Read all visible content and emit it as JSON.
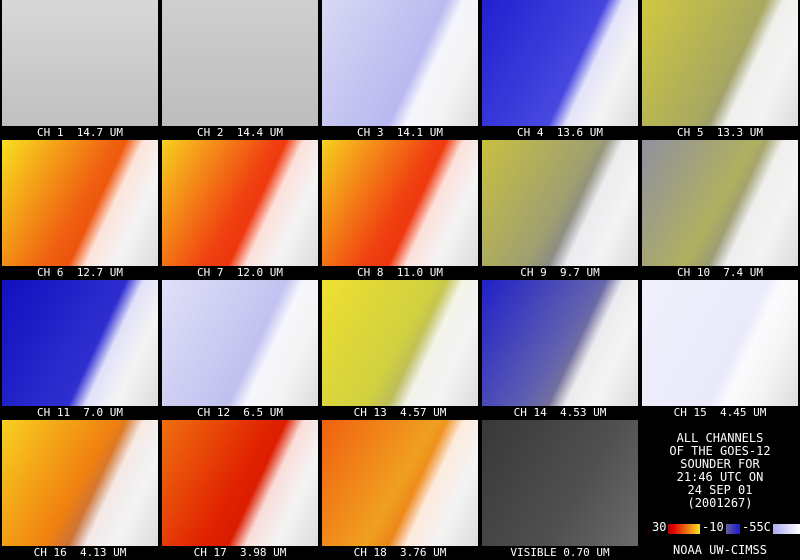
{
  "panels": [
    {
      "label": "CH 1  14.7 UM"
    },
    {
      "label": "CH 2  14.4 UM"
    },
    {
      "label": "CH 3  14.1 UM"
    },
    {
      "label": "CH 4  13.6 UM"
    },
    {
      "label": "CH 5  13.3 UM"
    },
    {
      "label": "CH 6  12.7 UM"
    },
    {
      "label": "CH 7  12.0 UM"
    },
    {
      "label": "CH 8  11.0 UM"
    },
    {
      "label": "CH 9  9.7 UM"
    },
    {
      "label": "CH 10  7.4 UM"
    },
    {
      "label": "CH 11  7.0 UM"
    },
    {
      "label": "CH 12  6.5 UM"
    },
    {
      "label": "CH 13  4.57 UM"
    },
    {
      "label": "CH 14  4.53 UM"
    },
    {
      "label": "CH 15  4.45 UM"
    },
    {
      "label": "CH 16  4.13 UM"
    },
    {
      "label": "CH 17  3.98 UM"
    },
    {
      "label": "CH 18  3.76 UM"
    },
    {
      "label": "VISIBLE 0.70 UM"
    }
  ],
  "info": {
    "lines": [
      "ALL CHANNELS",
      "OF THE GOES-12",
      "SOUNDER FOR",
      "21:46 UTC ON",
      "24 SEP 01",
      "(2001267)"
    ],
    "scale_labels": [
      "30",
      "-10",
      "-55C"
    ],
    "credit": "NOAA UW-CIMSS"
  }
}
